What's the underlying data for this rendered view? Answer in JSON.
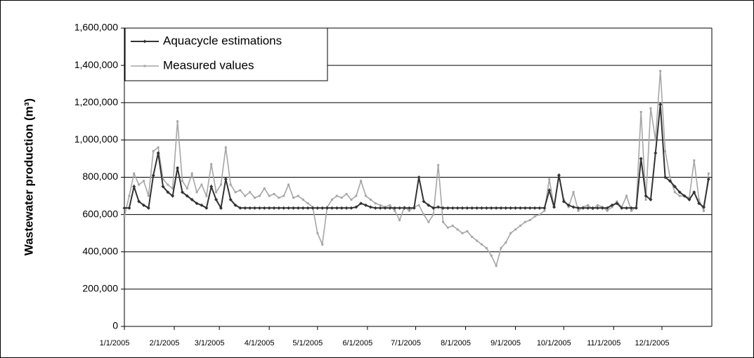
{
  "chart_data": {
    "type": "line",
    "ylabel": "Wastewater production (m³)",
    "x": [
      0,
      3,
      6,
      9,
      12,
      15,
      18,
      21,
      24,
      27,
      30,
      33,
      36,
      39,
      42,
      45,
      48,
      51,
      54,
      57,
      60,
      63,
      66,
      69,
      72,
      75,
      78,
      81,
      84,
      87,
      90,
      93,
      96,
      99,
      102,
      105,
      108,
      111,
      114,
      117,
      120,
      123,
      126,
      129,
      132,
      135,
      138,
      141,
      144,
      147,
      150,
      153,
      156,
      159,
      162,
      165,
      168,
      171,
      174,
      177,
      180,
      183,
      186,
      189,
      192,
      195,
      198,
      201,
      204,
      207,
      210,
      213,
      216,
      219,
      222,
      225,
      228,
      231,
      234,
      237,
      240,
      243,
      246,
      249,
      252,
      255,
      258,
      261,
      264,
      267,
      270,
      273,
      276,
      279,
      282,
      285,
      288,
      291,
      294,
      297,
      300,
      303,
      306,
      309,
      312,
      315,
      318,
      321,
      324,
      327,
      330,
      333,
      336,
      339,
      342,
      345,
      348,
      351,
      354,
      357,
      360,
      363
    ],
    "series": [
      {
        "name": "Aquacycle estimations",
        "color": "#333333",
        "values": [
          635000,
          635000,
          750000,
          670000,
          650000,
          635000,
          810000,
          930000,
          750000,
          720000,
          700000,
          850000,
          720000,
          700000,
          680000,
          660000,
          650000,
          635000,
          750000,
          680000,
          635000,
          790000,
          680000,
          650000,
          635000,
          635000,
          635000,
          635000,
          635000,
          635000,
          635000,
          635000,
          635000,
          635000,
          635000,
          635000,
          635000,
          635000,
          635000,
          635000,
          635000,
          635000,
          635000,
          635000,
          635000,
          635000,
          635000,
          635000,
          640000,
          660000,
          650000,
          640000,
          635000,
          635000,
          635000,
          635000,
          635000,
          635000,
          635000,
          635000,
          635000,
          800000,
          670000,
          650000,
          635000,
          640000,
          635000,
          635000,
          635000,
          635000,
          635000,
          635000,
          635000,
          635000,
          635000,
          635000,
          635000,
          635000,
          635000,
          635000,
          635000,
          635000,
          635000,
          635000,
          635000,
          635000,
          635000,
          635000,
          730000,
          640000,
          810000,
          670000,
          650000,
          640000,
          635000,
          635000,
          635000,
          635000,
          635000,
          635000,
          635000,
          650000,
          660000,
          635000,
          635000,
          635000,
          635000,
          900000,
          700000,
          680000,
          930000,
          1190000,
          800000,
          780000,
          750000,
          720000,
          700000,
          680000,
          720000,
          660000,
          640000,
          790000
        ]
      },
      {
        "name": "Measured values",
        "color": "#a6a6a6",
        "values": [
          590000,
          700000,
          820000,
          760000,
          780000,
          700000,
          940000,
          960000,
          790000,
          760000,
          740000,
          1100000,
          780000,
          740000,
          820000,
          720000,
          760000,
          700000,
          870000,
          720000,
          760000,
          960000,
          760000,
          720000,
          730000,
          700000,
          720000,
          690000,
          700000,
          740000,
          700000,
          710000,
          690000,
          700000,
          760000,
          690000,
          700000,
          680000,
          660000,
          640000,
          500000,
          440000,
          640000,
          680000,
          700000,
          690000,
          710000,
          680000,
          700000,
          780000,
          700000,
          680000,
          660000,
          650000,
          640000,
          650000,
          620000,
          570000,
          640000,
          620000,
          640000,
          650000,
          600000,
          560000,
          600000,
          865000,
          560000,
          530000,
          540000,
          520000,
          500000,
          510000,
          480000,
          460000,
          440000,
          420000,
          380000,
          325000,
          420000,
          450000,
          500000,
          520000,
          540000,
          560000,
          570000,
          590000,
          600000,
          620000,
          790000,
          640000,
          815000,
          680000,
          640000,
          720000,
          620000,
          640000,
          650000,
          630000,
          650000,
          640000,
          620000,
          640000,
          670000,
          640000,
          700000,
          620000,
          640000,
          1150000,
          680000,
          1170000,
          1000000,
          1370000,
          940000,
          800000,
          720000,
          700000,
          700000,
          690000,
          890000,
          680000,
          620000,
          820000
        ]
      }
    ],
    "xlim": [
      0,
      365
    ],
    "xticks": [
      {
        "value": 0,
        "label": "1/1/2005"
      },
      {
        "value": 31,
        "label": "2/1/2005"
      },
      {
        "value": 59,
        "label": "3/1/2005"
      },
      {
        "value": 90,
        "label": "4/1/2005"
      },
      {
        "value": 120,
        "label": "5/1/2005"
      },
      {
        "value": 151,
        "label": "6/1/2005"
      },
      {
        "value": 181,
        "label": "7/1/2005"
      },
      {
        "value": 212,
        "label": "8/1/2005"
      },
      {
        "value": 243,
        "label": "9/1/2005"
      },
      {
        "value": 273,
        "label": "10/1/2005"
      },
      {
        "value": 304,
        "label": "11/1/2005"
      },
      {
        "value": 334,
        "label": "12/1/2005"
      }
    ],
    "ylim": [
      0,
      1600000
    ],
    "yticks": [
      0,
      {
        "value": 200000,
        "label": "200,000"
      },
      {
        "value": 400000,
        "label": "400,000"
      },
      {
        "value": 600000,
        "label": "600,000"
      },
      {
        "value": 800000,
        "label": "800,000"
      },
      {
        "value": 1000000,
        "label": "1,000,000"
      },
      {
        "value": 1200000,
        "label": "1,200,000"
      },
      {
        "value": 1400000,
        "label": "1,400,000"
      },
      {
        "value": 1600000,
        "label": "1,600,000"
      }
    ],
    "grid": true,
    "legend": "upper left"
  }
}
